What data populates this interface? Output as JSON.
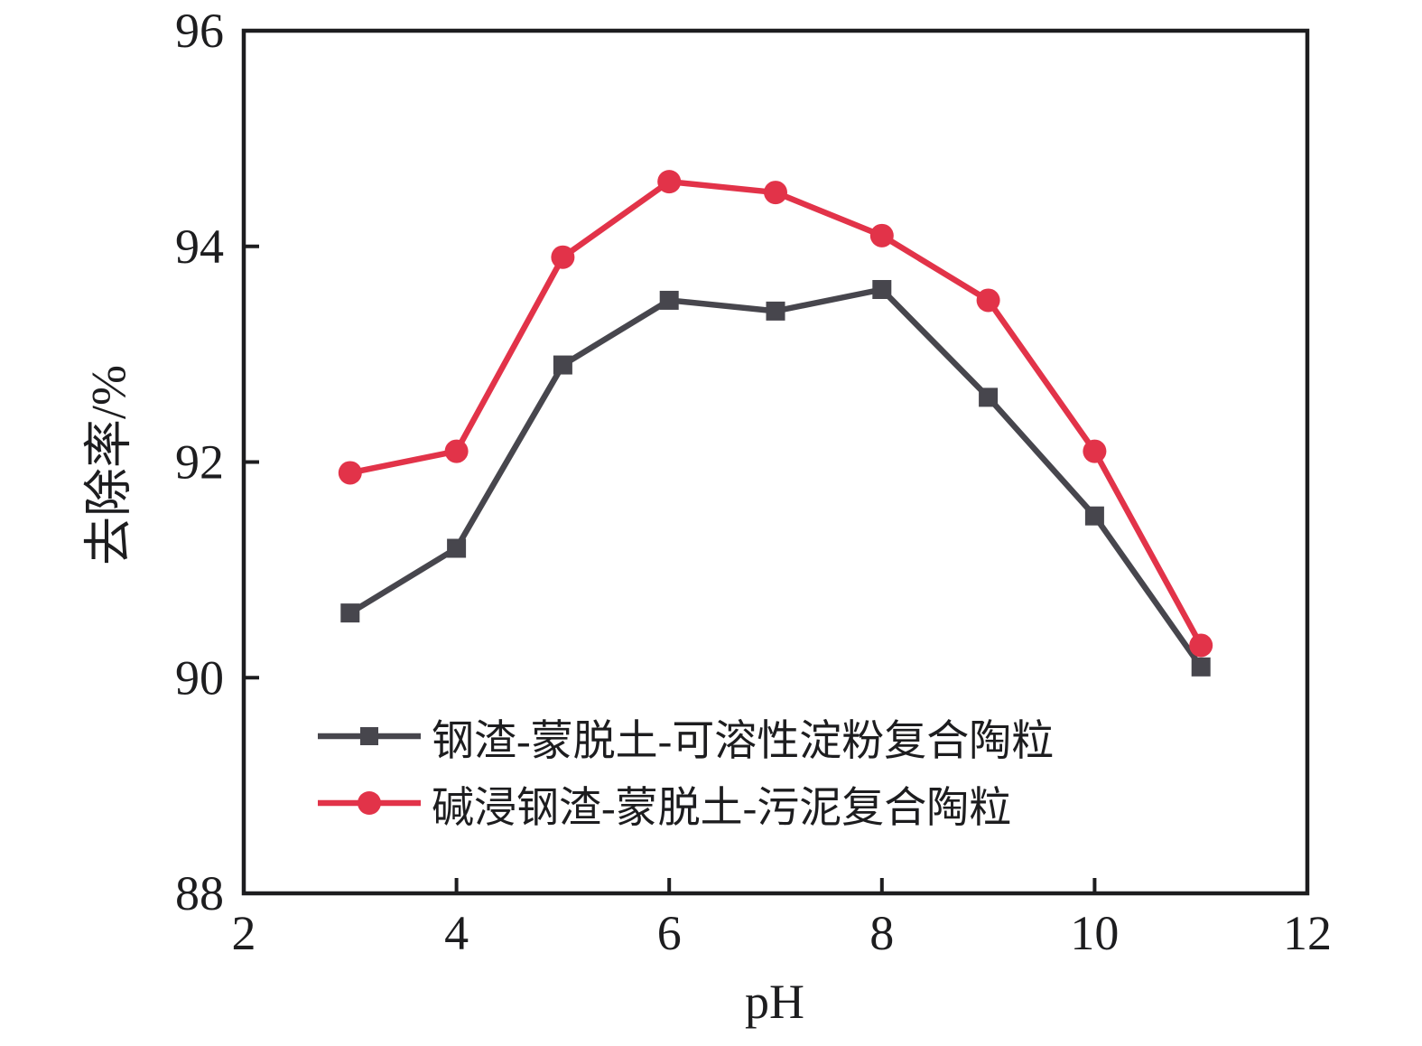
{
  "chart_data": {
    "type": "line",
    "title": "",
    "xlabel": "pH",
    "ylabel": "去除率/%",
    "xlim": [
      2,
      12
    ],
    "ylim": [
      88,
      96
    ],
    "xticks": [
      2,
      4,
      6,
      8,
      10,
      12
    ],
    "yticks": [
      88,
      90,
      92,
      94,
      96
    ],
    "grid": false,
    "legend_position": "inside-bottom-left",
    "x": [
      3,
      4,
      5,
      6,
      7,
      8,
      9,
      10,
      11
    ],
    "series": [
      {
        "name": "钢渣-蒙脱土-可溶性淀粉复合陶粒",
        "marker": "square",
        "color": "#47464d",
        "values": [
          90.6,
          91.2,
          92.9,
          93.5,
          93.4,
          93.6,
          92.6,
          91.5,
          90.1
        ]
      },
      {
        "name": "碱浸钢渣-蒙脱土-污泥复合陶粒",
        "marker": "circle",
        "color": "#e23349",
        "values": [
          91.9,
          92.1,
          93.9,
          94.6,
          94.5,
          94.1,
          93.5,
          92.1,
          90.3
        ]
      }
    ],
    "axis_color": "#1d1d1f"
  }
}
